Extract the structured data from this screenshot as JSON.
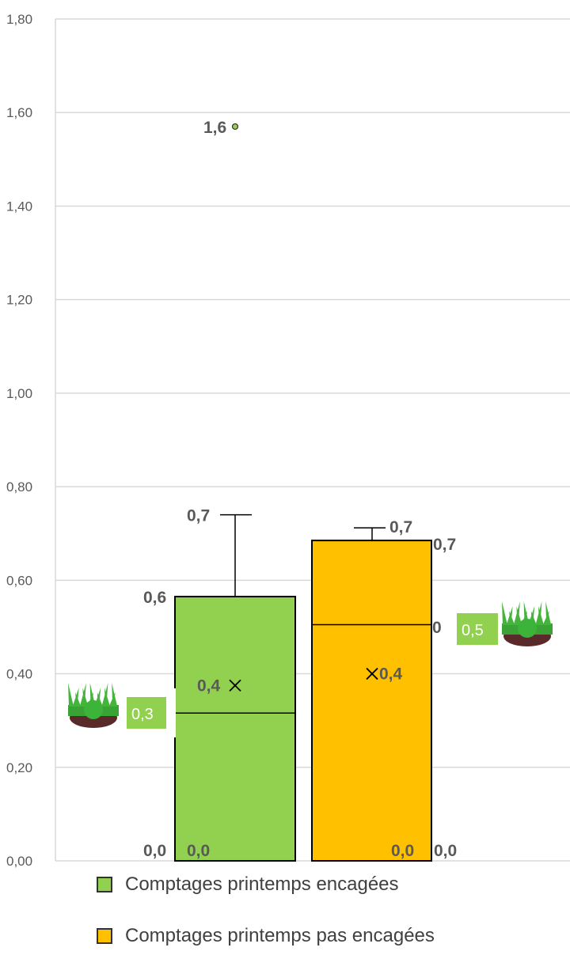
{
  "chart_data": {
    "type": "boxplot",
    "ylim": [
      0,
      1.8
    ],
    "y_ticks": [
      "0,00",
      "0,20",
      "0,40",
      "0,60",
      "0,80",
      "1,00",
      "1,20",
      "1,40",
      "1,60",
      "1,80"
    ],
    "grid": true,
    "legend_position": "bottom",
    "series": [
      {
        "name": "Comptages printemps encagées",
        "color": "#92D050",
        "min": 0.0,
        "q1": 0.0,
        "median": 0.316,
        "q3": 0.565,
        "max": 0.74,
        "mean": 0.375,
        "outliers": [
          1.57
        ],
        "labels": {
          "max": "0,7",
          "q3": "0,6",
          "mean": "0,4",
          "min": "0,0",
          "q1": "0,0",
          "outlier": "1,6"
        },
        "median_badge": "0,3"
      },
      {
        "name": "Comptages  printemps pas encagées",
        "color": "#FFC000",
        "min": 0.0,
        "q1": 0.0,
        "median": 0.505,
        "q3": 0.685,
        "max": 0.712,
        "mean": 0.4,
        "outliers": [],
        "labels": {
          "max": "0,7",
          "q3": "0,7",
          "mean": "0,4",
          "min": "0,0",
          "q1": "0,0"
        },
        "median_badge": "0,5"
      }
    ]
  }
}
